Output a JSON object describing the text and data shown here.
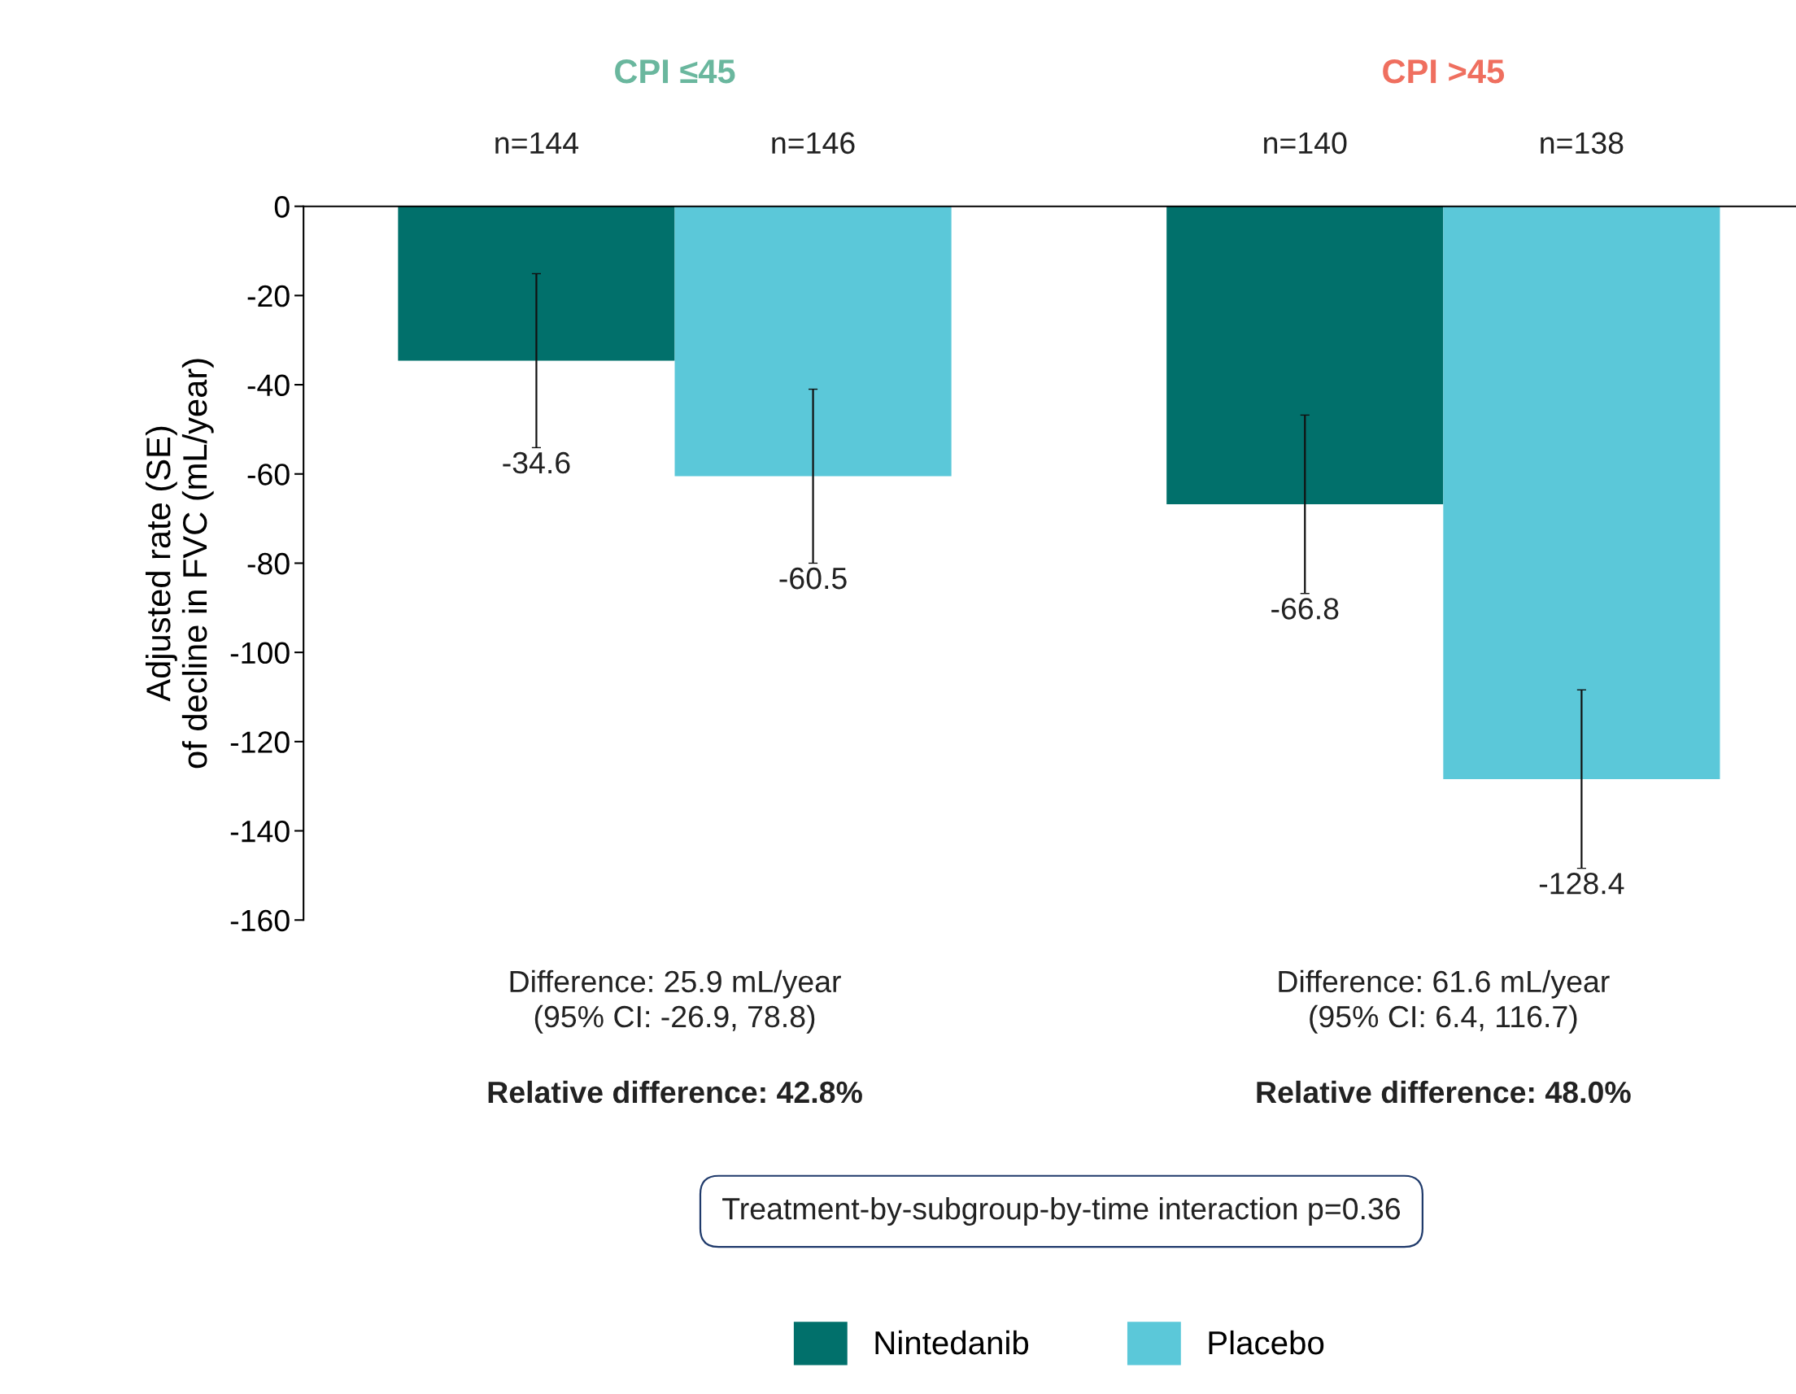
{
  "chart_data": {
    "type": "bar",
    "ylabel": "Adjusted rate (SE)\nof decline in FVC (mL/year)",
    "categories": [
      "CPI ≤45",
      "CPI >45"
    ],
    "series": [
      {
        "name": "Nintedanib",
        "color": "#01706b",
        "values": [
          -34.6,
          -66.8
        ],
        "errors": [
          19.5,
          20
        ]
      },
      {
        "name": "Placebo",
        "color": "#5bc8d9",
        "values": [
          -60.5,
          -128.4
        ],
        "errors": [
          19.5,
          20
        ]
      }
    ],
    "ylim": [
      -160,
      0
    ],
    "yticks": [
      -160,
      -140,
      -120,
      -100,
      -80,
      -60,
      -40,
      -20,
      0
    ],
    "data_labels": true,
    "grid": false,
    "legend": "bottom",
    "annotations": [
      "n=144",
      "n=146",
      "n=140",
      "n=138",
      "Difference: 25.9 mL/year\n(95% CI: -26.9, 78.8)",
      "Relative difference: 42.8%",
      "Difference: 61.6 mL/year\n(95% CI: 6.4, 116.7)",
      "Relative difference: 48.0%",
      "Treatment-by-subgroup-by-time interaction p=0.36"
    ]
  }
}
